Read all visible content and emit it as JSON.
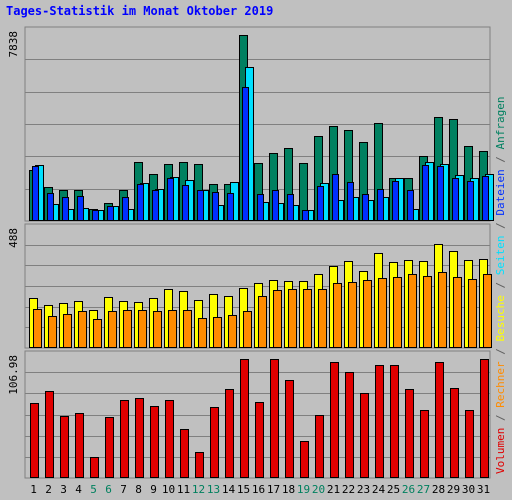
{
  "chart_data": {
    "type": "bar",
    "title": "Tages-Statistik im Monat Oktober 2019",
    "categories": [
      "1",
      "2",
      "3",
      "4",
      "5",
      "6",
      "7",
      "8",
      "9",
      "10",
      "11",
      "12",
      "13",
      "14",
      "15",
      "16",
      "17",
      "18",
      "19",
      "20",
      "21",
      "22",
      "23",
      "24",
      "25",
      "26",
      "27",
      "28",
      "29",
      "30",
      "31"
    ],
    "weekend_categories": [
      "5",
      "6",
      "12",
      "13",
      "19",
      "20",
      "26",
      "27"
    ],
    "panels": [
      {
        "id": "requests",
        "ymax_label": "7838",
        "ylim": [
          0,
          7838
        ],
        "series": [
          {
            "name": "Anfragen",
            "color": "#008060",
            "values": [
              2156,
              1422,
              1301,
              1315,
              522,
              749,
              1301,
              2499,
              2000,
              2381,
              2500,
              2399,
              1560,
              1560,
              7838,
              2460,
              2856,
              3070,
              2460,
              3572,
              3988,
              3831,
              3333,
              4110,
              1801,
              1801,
              2754,
              4400,
              4303,
              3140,
              2956
            ]
          },
          {
            "name": "Seiten",
            "color": "#00e0ff",
            "values": [
              2340,
              716,
              500,
              530,
              470,
              650,
              500,
              1619,
              1334,
              1850,
              1734,
              1320,
              690,
              1651,
              6492,
              780,
              740,
              690,
              460,
              1600,
              890,
              1000,
              890,
              1000,
              1801,
              500,
              2501,
              2410,
              1931,
              1792,
              2000
            ]
          },
          {
            "name": "Dateien",
            "color": "#0030ff",
            "values": [
              2300,
              1180,
              1010,
              1040,
              471,
              650,
              1031,
              1570,
              1310,
              1800,
              1500,
              1300,
              1230,
              1200,
              5650,
              1120,
              1320,
              1130,
              480,
              1470,
              1980,
              1630,
              1120,
              1330,
              1670,
              1320,
              2340,
              2300,
              1800,
              1700,
              1900
            ]
          }
        ]
      },
      {
        "id": "visits",
        "ymax_label": "488",
        "ylim": [
          0,
          488
        ],
        "series": [
          {
            "name": "Besuche",
            "color": "#ffff00",
            "values": [
              211,
              180,
              190,
              197,
              158,
              214,
              196,
              194,
              212,
              250,
              240,
              202,
              229,
              219,
              253,
              272,
              285,
              283,
              283,
              312,
              344,
              366,
              324,
              400,
              360,
              369,
              364,
              436,
              407,
              370,
              376
            ]
          },
          {
            "name": "Rechner",
            "color": "#ff8c00",
            "values": [
              165,
              134,
              145,
              154,
              124,
              154,
              161,
              161,
              156,
              158,
              159,
              125,
              132,
              139,
              154,
              218,
              246,
              250,
              249,
              250,
              274,
              277,
              288,
              295,
              300,
              312,
              302,
              318,
              300,
              292,
              310
            ]
          }
        ]
      },
      {
        "id": "volume",
        "ymax_label": "106.98",
        "ylim": [
          0,
          106.98
        ],
        "series": [
          {
            "name": "Volumen",
            "color": "#e00000",
            "values": [
              67,
              78,
              56,
              58,
              19,
              55,
              70,
              72,
              65,
              70,
              44,
              23,
              64,
              80,
              106.98,
              68,
              106.98,
              88,
              33,
              57,
              104,
              95,
              76,
              102,
              102,
              80,
              61,
              104,
              81,
              61,
              106.98
            ]
          }
        ]
      }
    ],
    "right_axis_label": [
      {
        "text": "Volumen",
        "color": "#e00000"
      },
      {
        "text": " / ",
        "color": "#606060"
      },
      {
        "text": "Rechner",
        "color": "#ff8c00"
      },
      {
        "text": " / ",
        "color": "#606060"
      },
      {
        "text": "Besuche",
        "color": "#ffff00"
      },
      {
        "text": " / ",
        "color": "#606060"
      },
      {
        "text": "Seiten",
        "color": "#00e0ff"
      },
      {
        "text": " / ",
        "color": "#606060"
      },
      {
        "text": "Dateien",
        "color": "#0030ff"
      },
      {
        "text": " / ",
        "color": "#606060"
      },
      {
        "text": "Anfragen",
        "color": "#008060"
      }
    ],
    "colors": {
      "weekday_label": "#000000",
      "weekend_label": "#00805e",
      "title": "#0000ff"
    }
  }
}
